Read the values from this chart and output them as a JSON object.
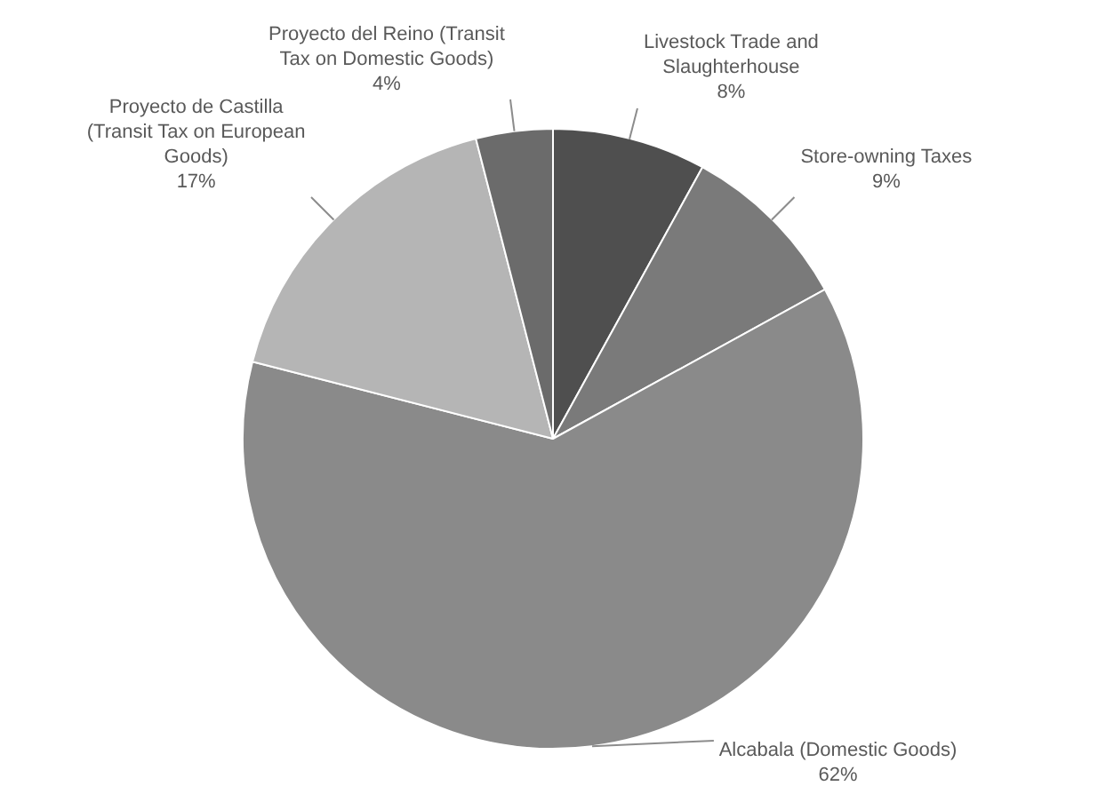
{
  "chart_data": {
    "type": "pie",
    "categories": [
      "Livestock Trade and Slaughterhouse",
      "Store-owning Taxes",
      "Alcabala (Domestic Goods)",
      "Proyecto de Castilla (Transit Tax on European Goods)",
      "Proyecto del Reino (Transit Tax on Domestic Goods)"
    ],
    "values": [
      8,
      9,
      62,
      17,
      4
    ],
    "colors": [
      "#4f4f4f",
      "#7a7a7a",
      "#8a8a8a",
      "#b5b5b5",
      "#6b6b6b"
    ],
    "value_labels": [
      "8%",
      "9%",
      "62%",
      "17%",
      "4%"
    ],
    "legend": false
  }
}
